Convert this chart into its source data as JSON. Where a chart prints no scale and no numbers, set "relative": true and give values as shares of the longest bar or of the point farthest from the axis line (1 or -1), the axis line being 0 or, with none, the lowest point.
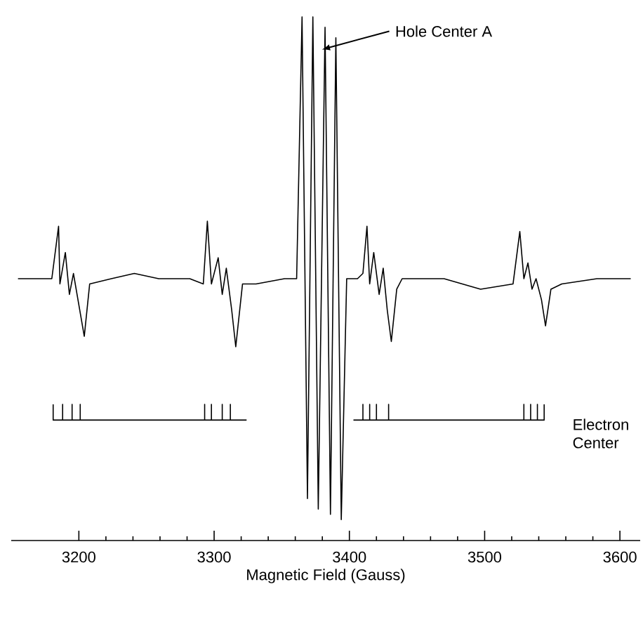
{
  "chart_data": {
    "type": "line",
    "relative": true,
    "xlabel": "Magnetic Field (Gauss)",
    "xlim": [
      3150,
      3615
    ],
    "xticks": [
      3200,
      3300,
      3400,
      3500,
      3600
    ],
    "marker": "none",
    "line_style": "solid",
    "annotations": [
      "Hole Center A"
    ],
    "series": [
      {
        "color": "#000000",
        "x": [
          3155,
          3180,
          3185,
          3186,
          3190,
          3193,
          3196,
          3200,
          3204,
          3208,
          3224,
          3241,
          3259,
          3282,
          3292,
          3295,
          3298,
          3303,
          3306,
          3309,
          3313,
          3316,
          3321,
          3331,
          3352,
          3361,
          3365,
          3369,
          3373,
          3377,
          3382,
          3386,
          3390,
          3394,
          3398,
          3406,
          3410,
          3413,
          3415,
          3418,
          3422,
          3425,
          3428,
          3431,
          3435,
          3439,
          3470,
          3497,
          3521,
          3526,
          3529,
          3532,
          3535,
          3538,
          3542,
          3545,
          3549,
          3557,
          3583,
          3608
        ],
        "values": [
          0.5,
          0.5,
          0.6,
          0.49,
          0.55,
          0.47,
          0.51,
          0.45,
          0.39,
          0.49,
          0.5,
          0.51,
          0.5,
          0.5,
          0.49,
          0.61,
          0.49,
          0.54,
          0.47,
          0.52,
          0.44,
          0.37,
          0.49,
          0.49,
          0.5,
          0.5,
          1.0,
          0.08,
          1.0,
          0.06,
          0.98,
          0.05,
          0.96,
          0.04,
          0.5,
          0.5,
          0.51,
          0.6,
          0.49,
          0.55,
          0.47,
          0.52,
          0.44,
          0.38,
          0.48,
          0.5,
          0.5,
          0.48,
          0.49,
          0.59,
          0.5,
          0.53,
          0.48,
          0.5,
          0.46,
          0.41,
          0.48,
          0.49,
          0.5,
          0.5
        ]
      },
      {
        "name": "Electron Center",
        "color": "#000000",
        "x": [
          3181,
          3181,
          3188,
          3188,
          3188,
          3195,
          3195,
          3195,
          3201,
          3201,
          3201,
          3293,
          3293,
          3293,
          3298,
          3298,
          3298,
          3306,
          3306,
          3306,
          3312,
          3312,
          3312,
          3324,
          3364,
          3403,
          3410,
          3410,
          3410,
          3415,
          3415,
          3415,
          3420,
          3420,
          3420,
          3429,
          3429,
          3429,
          3529,
          3529,
          3529,
          3534,
          3534,
          3534,
          3539,
          3539,
          3539,
          3544,
          3544
        ],
        "values": [
          0.26,
          0.23,
          0.23,
          0.26,
          0.23,
          0.23,
          0.26,
          0.23,
          0.23,
          0.26,
          0.23,
          0.23,
          0.26,
          0.23,
          0.23,
          0.26,
          0.23,
          0.23,
          0.26,
          0.23,
          0.23,
          0.26,
          0.23,
          0.23,
          null,
          0.23,
          0.23,
          0.26,
          0.23,
          0.23,
          0.26,
          0.23,
          0.23,
          0.26,
          0.23,
          0.23,
          0.26,
          0.23,
          0.23,
          0.26,
          0.23,
          0.23,
          0.26,
          0.23,
          0.23,
          0.26,
          0.23,
          0.23,
          0.26
        ]
      }
    ]
  }
}
